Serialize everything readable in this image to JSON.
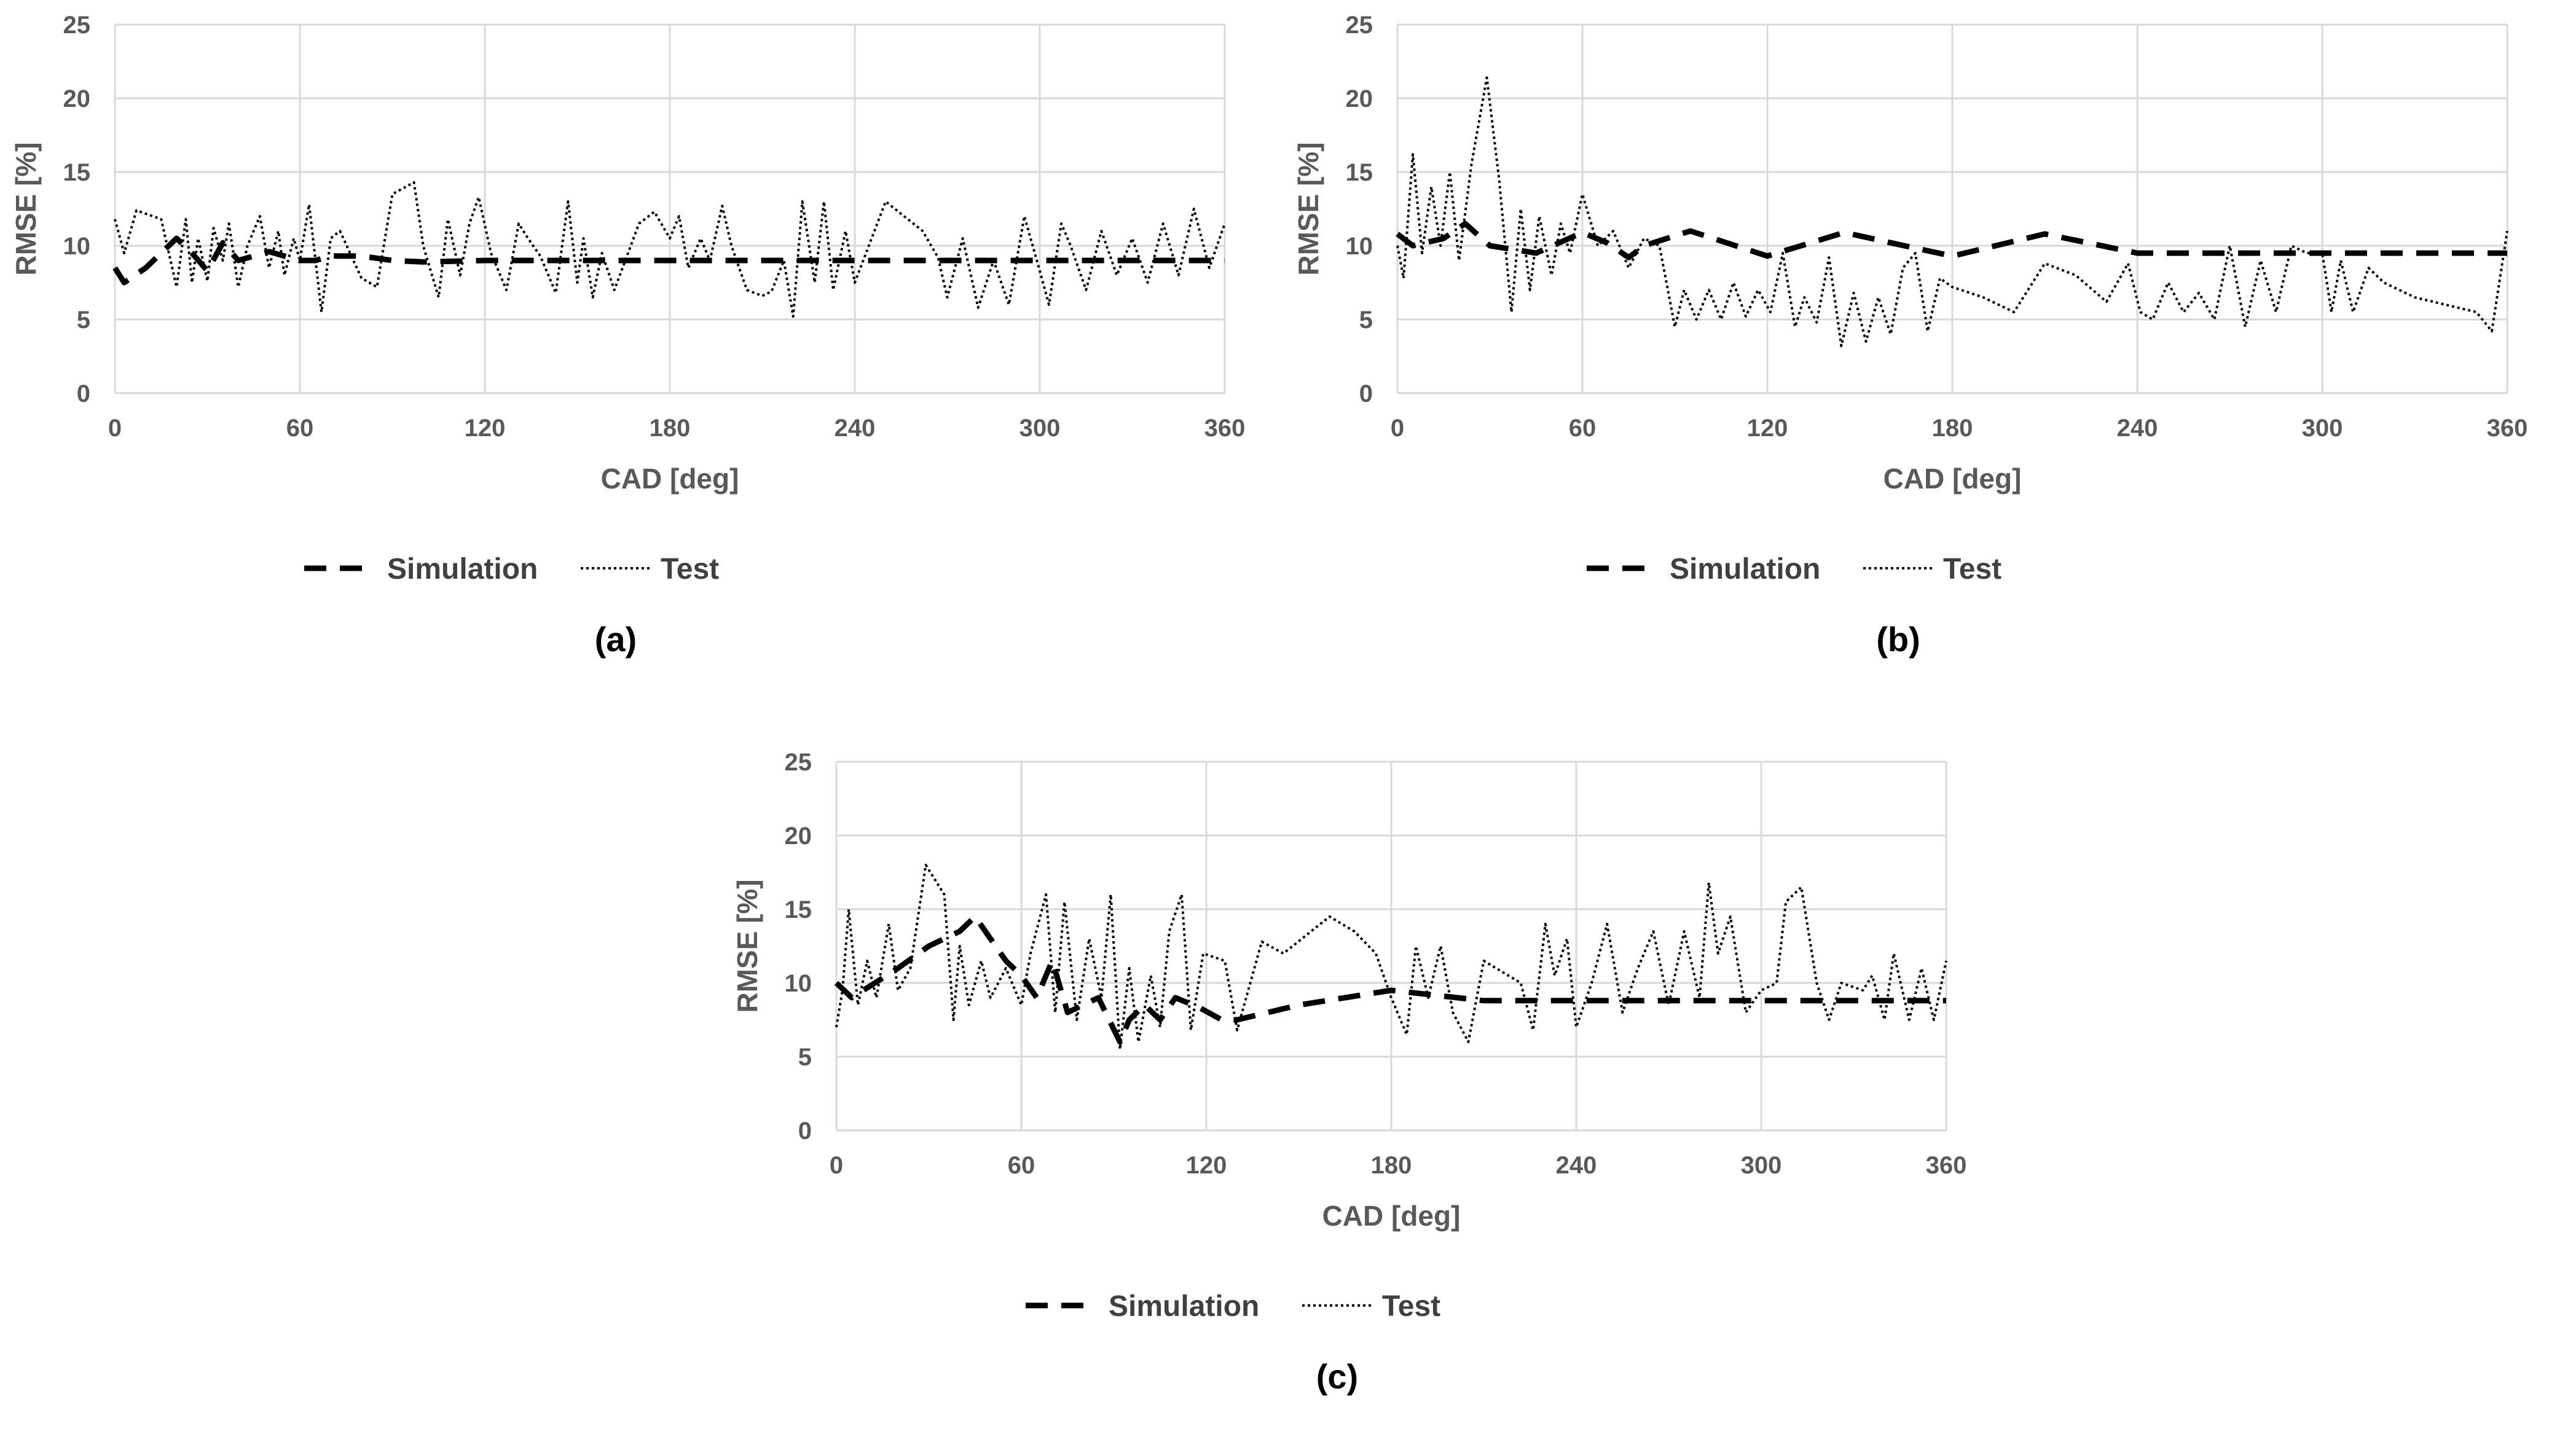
{
  "colors": {
    "grid": "#d9d9d9",
    "axis": "#d9d9d9",
    "simulation": "#000000",
    "test": "#000000",
    "text": "#595959"
  },
  "chart_data": [
    {
      "id": "a",
      "type": "line",
      "panel_label": "(a)",
      "xlabel": "CAD [deg]",
      "ylabel": "RMSE [%]",
      "xlim": [
        0,
        360
      ],
      "ylim": [
        0,
        25
      ],
      "xticks": [
        "0",
        "60",
        "120",
        "180",
        "240",
        "300",
        "360"
      ],
      "yticks": [
        "0",
        "5",
        "10",
        "15",
        "20",
        "25"
      ],
      "legend": [
        "Simulation",
        "Test"
      ],
      "series": [
        {
          "name": "Simulation",
          "style": "dashed",
          "x": [
            0,
            3,
            10,
            20,
            25,
            30,
            35,
            40,
            45,
            50,
            55,
            60,
            65,
            70,
            80,
            90,
            100,
            120,
            180,
            240,
            300,
            360
          ],
          "y": [
            8.5,
            7.5,
            8.5,
            10.5,
            9.5,
            8.3,
            10.2,
            9.0,
            9.3,
            9.6,
            9.3,
            9.0,
            9.0,
            9.3,
            9.3,
            9.0,
            8.9,
            9.0,
            9.0,
            9.0,
            9.0,
            9.0
          ]
        },
        {
          "name": "Test",
          "style": "dotted",
          "x": [
            0,
            3,
            7,
            15,
            20,
            23,
            25,
            27,
            30,
            32,
            35,
            37,
            40,
            43,
            47,
            50,
            53,
            55,
            58,
            60,
            63,
            67,
            70,
            73,
            80,
            85,
            90,
            97,
            100,
            105,
            108,
            112,
            115,
            118,
            122,
            127,
            131,
            134,
            138,
            143,
            147,
            150,
            152,
            155,
            158,
            162,
            170,
            175,
            180,
            183,
            186,
            190,
            193,
            197,
            200,
            205,
            210,
            213,
            217,
            220,
            223,
            227,
            230,
            233,
            237,
            240,
            250,
            262,
            267,
            270,
            275,
            280,
            285,
            290,
            295,
            300,
            303,
            307,
            310,
            315,
            320,
            325,
            330,
            335,
            340,
            345,
            350,
            355,
            360
          ],
          "y": [
            11.8,
            9.5,
            12.4,
            11.8,
            7.2,
            11.8,
            7.5,
            10.5,
            7.6,
            11.2,
            9.0,
            11.5,
            7.2,
            10.0,
            12.0,
            8.5,
            11.0,
            8.0,
            10.5,
            9.0,
            12.8,
            5.5,
            10.5,
            11.0,
            7.8,
            7.2,
            13.5,
            14.3,
            10.0,
            6.5,
            11.8,
            8.0,
            11.5,
            13.3,
            9.5,
            7.0,
            11.5,
            10.5,
            9.3,
            6.8,
            13.0,
            7.5,
            10.5,
            6.5,
            9.5,
            7.0,
            11.5,
            12.3,
            10.5,
            12.0,
            8.5,
            10.5,
            9.0,
            12.7,
            10.0,
            7.0,
            6.6,
            6.9,
            9.0,
            5.2,
            13.0,
            7.5,
            13.0,
            7.0,
            11.0,
            7.5,
            13.0,
            11.0,
            9.2,
            6.5,
            10.5,
            5.8,
            9.0,
            6.0,
            12.0,
            8.3,
            6.0,
            11.5,
            10.0,
            7.0,
            11.0,
            8.0,
            10.5,
            7.5,
            11.5,
            8.0,
            12.5,
            8.5,
            11.5
          ]
        }
      ]
    },
    {
      "id": "b",
      "type": "line",
      "panel_label": "(b)",
      "xlabel": "CAD [deg]",
      "ylabel": "RMSE [%]",
      "xlim": [
        0,
        360
      ],
      "ylim": [
        0,
        25
      ],
      "xticks": [
        "0",
        "60",
        "120",
        "180",
        "240",
        "300",
        "360"
      ],
      "yticks": [
        "0",
        "5",
        "10",
        "15",
        "20",
        "25"
      ],
      "legend": [
        "Simulation",
        "Test"
      ],
      "series": [
        {
          "name": "Simulation",
          "style": "dashed",
          "x": [
            0,
            5,
            15,
            22,
            30,
            45,
            60,
            68,
            75,
            80,
            95,
            120,
            145,
            160,
            180,
            210,
            240,
            270,
            300,
            330,
            360
          ],
          "y": [
            10.8,
            10.0,
            10.5,
            11.5,
            10.0,
            9.5,
            10.9,
            10.2,
            9.2,
            10.0,
            11.0,
            9.3,
            10.9,
            10.2,
            9.3,
            10.8,
            9.5,
            9.5,
            9.5,
            9.5,
            9.5
          ]
        },
        {
          "name": "Test",
          "style": "dotted",
          "x": [
            0,
            2,
            5,
            8,
            11,
            14,
            17,
            20,
            24,
            29,
            33,
            37,
            40,
            43,
            46,
            50,
            53,
            56,
            60,
            65,
            70,
            75,
            80,
            85,
            90,
            93,
            97,
            101,
            105,
            109,
            113,
            117,
            121,
            125,
            129,
            132,
            136,
            140,
            144,
            148,
            152,
            156,
            160,
            164,
            168,
            172,
            176,
            180,
            190,
            200,
            210,
            220,
            230,
            237,
            241,
            245,
            250,
            255,
            260,
            265,
            270,
            275,
            280,
            285,
            290,
            295,
            300,
            303,
            306,
            310,
            315,
            320,
            330,
            340,
            350,
            355,
            360
          ],
          "y": [
            10.0,
            7.8,
            16.2,
            9.5,
            14.0,
            10.0,
            15.0,
            9.0,
            15.5,
            21.4,
            14.5,
            5.5,
            12.5,
            7.0,
            12.0,
            8.0,
            11.5,
            9.5,
            13.5,
            10.0,
            11.0,
            8.5,
            10.5,
            10.0,
            4.5,
            7.0,
            5.0,
            7.0,
            5.0,
            7.5,
            5.2,
            7.0,
            5.5,
            9.5,
            4.5,
            6.5,
            4.8,
            9.2,
            3.2,
            6.8,
            3.5,
            6.5,
            4.0,
            8.5,
            9.5,
            4.2,
            7.8,
            7.2,
            6.5,
            5.5,
            8.8,
            8.0,
            6.2,
            8.8,
            5.5,
            5.0,
            7.5,
            5.5,
            6.8,
            5.0,
            10.0,
            4.5,
            9.0,
            5.5,
            10.0,
            9.5,
            9.5,
            5.5,
            9.0,
            5.5,
            8.5,
            7.5,
            6.5,
            6.0,
            5.5,
            4.2,
            11.0
          ]
        }
      ]
    },
    {
      "id": "c",
      "type": "line",
      "panel_label": "(c)",
      "xlabel": "CAD [deg]",
      "ylabel": "RMSE [%]",
      "xlim": [
        0,
        360
      ],
      "ylim": [
        0,
        25
      ],
      "xticks": [
        "0",
        "60",
        "120",
        "180",
        "240",
        "300",
        "360"
      ],
      "yticks": [
        "0",
        "5",
        "10",
        "15",
        "20",
        "25"
      ],
      "legend": [
        "Simulation",
        "Test"
      ],
      "series": [
        {
          "name": "Simulation",
          "style": "dashed",
          "x": [
            0,
            5,
            20,
            30,
            40,
            45,
            50,
            55,
            60,
            65,
            70,
            75,
            85,
            92,
            95,
            100,
            105,
            110,
            118,
            125,
            130,
            150,
            180,
            210,
            240,
            270,
            300,
            330,
            360
          ],
          "y": [
            10.0,
            9.0,
            11.0,
            12.5,
            13.5,
            14.5,
            13.0,
            11.5,
            10.5,
            9.0,
            11.5,
            8.0,
            9.0,
            6.0,
            7.5,
            8.5,
            7.5,
            9.0,
            8.3,
            7.5,
            7.5,
            8.5,
            9.5,
            8.8,
            8.8,
            8.8,
            8.8,
            8.8,
            8.8
          ]
        },
        {
          "name": "Test",
          "style": "dotted",
          "x": [
            0,
            2,
            4,
            7,
            10,
            13,
            17,
            20,
            24,
            29,
            35,
            38,
            40,
            43,
            47,
            50,
            55,
            60,
            63,
            68,
            71,
            74,
            78,
            82,
            86,
            89,
            92,
            95,
            98,
            102,
            105,
            108,
            112,
            115,
            119,
            126,
            130,
            138,
            145,
            160,
            168,
            175,
            180,
            185,
            188,
            192,
            196,
            200,
            205,
            210,
            222,
            226,
            230,
            233,
            237,
            240,
            245,
            250,
            255,
            260,
            265,
            270,
            275,
            280,
            283,
            286,
            290,
            295,
            300,
            305,
            308,
            313,
            318,
            322,
            326,
            333,
            336,
            340,
            343,
            348,
            352,
            356,
            360
          ],
          "y": [
            7.0,
            9.5,
            15.0,
            8.5,
            11.5,
            9.0,
            14.0,
            9.5,
            11.0,
            18.0,
            16.0,
            7.5,
            12.5,
            8.5,
            11.5,
            9.0,
            11.0,
            8.5,
            12.0,
            16.0,
            8.0,
            15.5,
            7.5,
            13.0,
            9.0,
            16.0,
            5.5,
            11.0,
            6.0,
            10.5,
            7.0,
            13.5,
            16.0,
            6.8,
            12.0,
            11.5,
            6.8,
            12.8,
            12.0,
            14.5,
            13.5,
            12.0,
            9.0,
            6.5,
            12.5,
            9.0,
            12.5,
            8.0,
            6.0,
            11.5,
            10.0,
            6.8,
            14.0,
            10.5,
            13.0,
            7.0,
            10.0,
            14.0,
            8.0,
            11.0,
            13.5,
            8.5,
            13.5,
            9.0,
            16.8,
            12.0,
            14.5,
            8.0,
            9.5,
            10.0,
            15.5,
            16.5,
            10.0,
            7.5,
            10.0,
            9.5,
            10.5,
            7.5,
            12.0,
            7.5,
            11.0,
            7.5,
            11.5
          ]
        }
      ]
    }
  ]
}
